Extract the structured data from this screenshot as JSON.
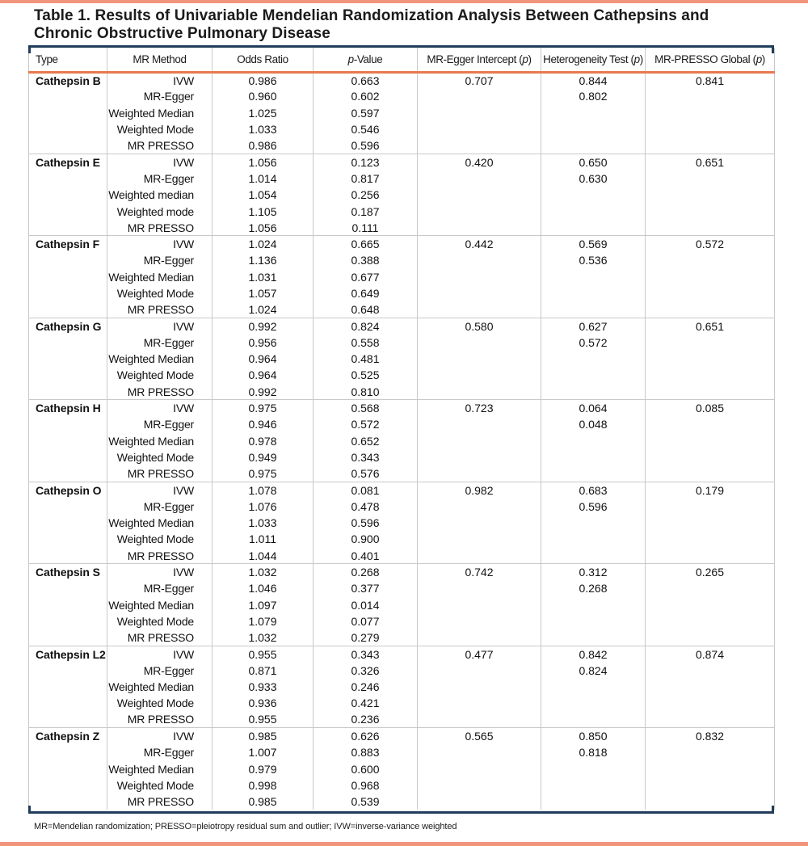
{
  "page": {
    "title": "Table 1. Results of Univariable Mendelian Randomization Analysis Between Cathepsins and\nChronic Obstructive Pulmonary Disease",
    "footnote": "MR=Mendelian randomization; PRESSO=pleiotropy residual sum and outlier; IVW=inverse-variance weighted"
  },
  "colors": {
    "accent_bar": "#F0947C",
    "header_rule": "#E87950",
    "table_frame_rule": "#213C5C",
    "grid_line": "#C9C9C9"
  },
  "table": {
    "columns": [
      {
        "key": "type",
        "parts": [
          {
            "t": "Type"
          }
        ]
      },
      {
        "key": "mr-method",
        "parts": [
          {
            "t": "MR Method"
          }
        ]
      },
      {
        "key": "odds-ratio",
        "parts": [
          {
            "t": "Odds Ratio"
          }
        ]
      },
      {
        "key": "p-value",
        "parts": [
          {
            "t": "p",
            "i": true
          },
          {
            "t": "-Value"
          }
        ]
      },
      {
        "key": "mr-egger-intercept",
        "parts": [
          {
            "t": "MR-Egger Intercept ("
          },
          {
            "t": "p",
            "i": true
          },
          {
            "t": ")"
          }
        ]
      },
      {
        "key": "heterogeneity-test",
        "parts": [
          {
            "t": "Heterogeneity Test ("
          },
          {
            "t": "p",
            "i": true
          },
          {
            "t": ")"
          }
        ]
      },
      {
        "key": "mr-presso-global",
        "parts": [
          {
            "t": "MR-PRESSO Global ("
          },
          {
            "t": "p",
            "i": true
          },
          {
            "t": ")"
          }
        ]
      }
    ],
    "groups": [
      {
        "type": "Cathepsin B",
        "rows": [
          {
            "method": "IVW",
            "or": "0.986",
            "p": "0.663",
            "egger_intercept": "0.707",
            "heterogeneity": "0.844",
            "presso": "0.841"
          },
          {
            "method": "MR-Egger",
            "or": "0.960",
            "p": "0.602",
            "heterogeneity": "0.802"
          },
          {
            "method": "Weighted Median",
            "or": "1.025",
            "p": "0.597"
          },
          {
            "method": "Weighted Mode",
            "or": "1.033",
            "p": "0.546"
          },
          {
            "method": "MR PRESSO",
            "or": "0.986",
            "p": "0.596"
          }
        ]
      },
      {
        "type": "Cathepsin E",
        "rows": [
          {
            "method": "IVW",
            "or": "1.056",
            "p": "0.123",
            "egger_intercept": "0.420",
            "heterogeneity": "0.650",
            "presso": "0.651"
          },
          {
            "method": "MR-Egger",
            "or": "1.014",
            "p": "0.817",
            "heterogeneity": "0.630"
          },
          {
            "method": "Weighted median",
            "or": "1.054",
            "p": "0.256"
          },
          {
            "method": "Weighted mode",
            "or": "1.105",
            "p": "0.187"
          },
          {
            "method": "MR PRESSO",
            "or": "1.056",
            "p": "0.111"
          }
        ]
      },
      {
        "type": "Cathepsin F",
        "rows": [
          {
            "method": "IVW",
            "or": "1.024",
            "p": "0.665",
            "egger_intercept": "0.442",
            "heterogeneity": "0.569",
            "presso": "0.572"
          },
          {
            "method": "MR-Egger",
            "or": "1.136",
            "p": "0.388",
            "heterogeneity": "0.536"
          },
          {
            "method": "Weighted Median",
            "or": "1.031",
            "p": "0.677"
          },
          {
            "method": "Weighted Mode",
            "or": "1.057",
            "p": "0.649"
          },
          {
            "method": "MR PRESSO",
            "or": "1.024",
            "p": "0.648"
          }
        ]
      },
      {
        "type": "Cathepsin G",
        "rows": [
          {
            "method": "IVW",
            "or": "0.992",
            "p": "0.824",
            "egger_intercept": "0.580",
            "heterogeneity": "0.627",
            "presso": "0.651"
          },
          {
            "method": "MR-Egger",
            "or": "0.956",
            "p": "0.558",
            "heterogeneity": "0.572"
          },
          {
            "method": "Weighted Median",
            "or": "0.964",
            "p": "0.481"
          },
          {
            "method": "Weighted Mode",
            "or": "0.964",
            "p": "0.525"
          },
          {
            "method": "MR PRESSO",
            "or": "0.992",
            "p": "0.810"
          }
        ]
      },
      {
        "type": "Cathepsin H",
        "rows": [
          {
            "method": "IVW",
            "or": "0.975",
            "p": "0.568",
            "egger_intercept": "0.723",
            "heterogeneity": "0.064",
            "presso": "0.085"
          },
          {
            "method": "MR-Egger",
            "or": "0.946",
            "p": "0.572",
            "heterogeneity": "0.048"
          },
          {
            "method": "Weighted Median",
            "or": "0.978",
            "p": "0.652"
          },
          {
            "method": "Weighted Mode",
            "or": "0.949",
            "p": "0.343"
          },
          {
            "method": "MR PRESSO",
            "or": "0.975",
            "p": "0.576"
          }
        ]
      },
      {
        "type": "Cathepsin O",
        "rows": [
          {
            "method": "IVW",
            "or": "1.078",
            "p": "0.081",
            "egger_intercept": "0.982",
            "heterogeneity": "0.683",
            "presso": "0.179"
          },
          {
            "method": "MR-Egger",
            "or": "1.076",
            "p": "0.478",
            "heterogeneity": "0.596"
          },
          {
            "method": "Weighted Median",
            "or": "1.033",
            "p": "0.596"
          },
          {
            "method": "Weighted Mode",
            "or": "1.011",
            "p": "0.900"
          },
          {
            "method": "MR PRESSO",
            "or": "1.044",
            "p": "0.401"
          }
        ]
      },
      {
        "type": "Cathepsin S",
        "rows": [
          {
            "method": "IVW",
            "or": "1.032",
            "p": "0.268",
            "egger_intercept": "0.742",
            "heterogeneity": "0.312",
            "presso": "0.265"
          },
          {
            "method": "MR-Egger",
            "or": "1.046",
            "p": "0.377",
            "heterogeneity": "0.268"
          },
          {
            "method": "Weighted Median",
            "or": "1.097",
            "p": "0.014"
          },
          {
            "method": "Weighted Mode",
            "or": "1.079",
            "p": "0.077"
          },
          {
            "method": "MR PRESSO",
            "or": "1.032",
            "p": "0.279"
          }
        ]
      },
      {
        "type": "Cathepsin L2",
        "rows": [
          {
            "method": "IVW",
            "or": "0.955",
            "p": "0.343",
            "egger_intercept": "0.477",
            "heterogeneity": "0.842",
            "presso": "0.874"
          },
          {
            "method": "MR-Egger",
            "or": "0.871",
            "p": "0.326",
            "heterogeneity": "0.824"
          },
          {
            "method": "Weighted Median",
            "or": "0.933",
            "p": "0.246"
          },
          {
            "method": "Weighted Mode",
            "or": "0.936",
            "p": "0.421"
          },
          {
            "method": "MR PRESSO",
            "or": "0.955",
            "p": "0.236"
          }
        ]
      },
      {
        "type": "Cathepsin Z",
        "rows": [
          {
            "method": "IVW",
            "or": "0.985",
            "p": "0.626",
            "egger_intercept": "0.565",
            "heterogeneity": "0.850",
            "presso": "0.832"
          },
          {
            "method": "MR-Egger",
            "or": "1.007",
            "p": "0.883",
            "heterogeneity": "0.818"
          },
          {
            "method": "Weighted Median",
            "or": "0.979",
            "p": "0.600"
          },
          {
            "method": "Weighted Mode",
            "or": "0.998",
            "p": "0.968"
          },
          {
            "method": "MR PRESSO",
            "or": "0.985",
            "p": "0.539"
          }
        ]
      }
    ]
  }
}
